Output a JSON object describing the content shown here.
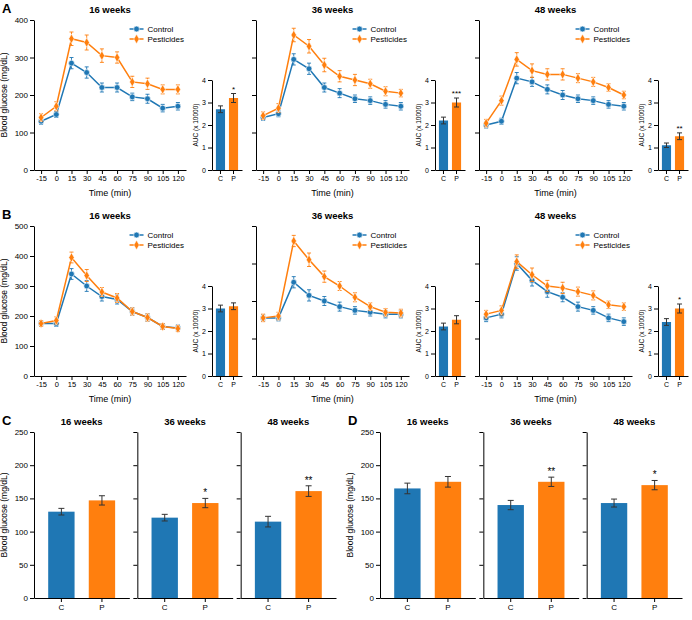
{
  "chart_data": [
    {
      "type": "line",
      "title": "16 weeks",
      "xlabel": "Time (min)",
      "ylabel": "Blood glucose (mg/dL)",
      "x": [
        -15,
        0,
        15,
        30,
        45,
        60,
        75,
        90,
        105,
        120
      ],
      "xlim": [
        -22,
        128
      ],
      "xticks": [
        -15,
        0,
        15,
        30,
        45,
        60,
        75,
        90,
        105,
        120
      ],
      "ylim": [
        0,
        400
      ],
      "yticks": [
        0,
        100,
        200,
        300,
        400
      ],
      "legend": "upper right",
      "series": [
        {
          "name": "Control",
          "marker": "circle",
          "values": [
            130,
            148,
            285,
            260,
            220,
            220,
            195,
            190,
            165,
            170
          ],
          "errors": [
            8,
            8,
            15,
            15,
            12,
            12,
            10,
            12,
            10,
            10
          ]
        },
        {
          "name": "Pesticides",
          "marker": "diamond",
          "values": [
            140,
            170,
            350,
            340,
            305,
            300,
            235,
            230,
            215,
            215
          ],
          "errors": [
            10,
            12,
            18,
            20,
            18,
            15,
            15,
            15,
            12,
            12
          ]
        }
      ],
      "annotations": [
        {
          "text": "A"
        }
      ],
      "inset": {
        "type": "bar",
        "ylabel": "AUC (x 10000)",
        "categories": [
          "C",
          "P"
        ],
        "values": [
          2.7,
          3.2
        ],
        "errors": [
          0.15,
          0.2
        ],
        "ylim": [
          0,
          4
        ],
        "yticks": [
          0,
          1,
          2,
          3,
          4
        ],
        "annotations": [
          {
            "text": "*",
            "x": "P"
          }
        ]
      }
    },
    {
      "type": "line",
      "title": "36 weeks",
      "xlabel": "Time (min)",
      "x": [
        -15,
        0,
        15,
        30,
        45,
        60,
        75,
        90,
        105,
        120
      ],
      "xlim": [
        -22,
        128
      ],
      "xticks": [
        -15,
        0,
        15,
        30,
        45,
        60,
        75,
        90,
        105,
        120
      ],
      "ylim": [
        0,
        400
      ],
      "yticks": [
        0,
        100,
        200,
        300,
        400
      ],
      "legend": "upper right",
      "tick_labels": "x",
      "series": [
        {
          "name": "Control",
          "marker": "circle",
          "values": [
            140,
            150,
            295,
            270,
            220,
            205,
            190,
            185,
            175,
            170
          ],
          "errors": [
            8,
            8,
            15,
            15,
            12,
            12,
            10,
            10,
            10,
            10
          ]
        },
        {
          "name": "Pesticides",
          "marker": "diamond",
          "values": [
            145,
            165,
            360,
            330,
            280,
            250,
            240,
            230,
            210,
            205
          ],
          "errors": [
            10,
            12,
            18,
            18,
            18,
            15,
            15,
            12,
            12,
            10
          ]
        }
      ],
      "inset": {
        "type": "bar",
        "ylabel": "AUC (x 10000)",
        "categories": [
          "C",
          "P"
        ],
        "values": [
          2.2,
          3.0
        ],
        "errors": [
          0.15,
          0.2
        ],
        "ylim": [
          0,
          4
        ],
        "yticks": [
          0,
          1,
          2,
          3,
          4
        ],
        "annotations": [
          {
            "text": "***",
            "x": "P"
          }
        ]
      }
    },
    {
      "type": "line",
      "title": "48 weeks",
      "xlabel": "Time (min)",
      "x": [
        -15,
        0,
        15,
        30,
        45,
        60,
        75,
        90,
        105,
        120
      ],
      "xlim": [
        -22,
        128
      ],
      "xticks": [
        -15,
        0,
        15,
        30,
        45,
        60,
        75,
        90,
        105,
        120
      ],
      "ylim": [
        0,
        400
      ],
      "yticks": [
        0,
        100,
        200,
        300,
        400
      ],
      "legend": "upper right",
      "tick_labels": "x",
      "series": [
        {
          "name": "Control",
          "marker": "circle",
          "values": [
            120,
            130,
            245,
            235,
            215,
            200,
            190,
            185,
            175,
            170
          ],
          "errors": [
            8,
            8,
            15,
            12,
            12,
            12,
            10,
            10,
            10,
            10
          ]
        },
        {
          "name": "Pesticides",
          "marker": "diamond",
          "values": [
            125,
            185,
            295,
            265,
            255,
            255,
            245,
            235,
            220,
            200
          ],
          "errors": [
            10,
            12,
            18,
            18,
            15,
            15,
            12,
            12,
            10,
            10
          ]
        }
      ],
      "inset": {
        "type": "bar",
        "ylabel": "AUC (x 10000)",
        "categories": [
          "C",
          "P"
        ],
        "values": [
          1.1,
          1.5
        ],
        "errors": [
          0.1,
          0.15
        ],
        "ylim": [
          0,
          4
        ],
        "yticks": [
          0,
          1,
          2,
          3,
          4
        ],
        "annotations": [
          {
            "text": "**",
            "x": "P"
          }
        ]
      }
    },
    {
      "type": "line",
      "title": "16 weeks",
      "xlabel": "Time (min)",
      "ylabel": "Blood glucose (mg/dL)",
      "x": [
        -15,
        0,
        15,
        30,
        45,
        60,
        75,
        90,
        105,
        120
      ],
      "xlim": [
        -22,
        128
      ],
      "xticks": [
        -15,
        0,
        15,
        30,
        45,
        60,
        75,
        90,
        105,
        120
      ],
      "ylim": [
        0,
        500
      ],
      "yticks": [
        0,
        100,
        200,
        300,
        400,
        500
      ],
      "legend": "upper right",
      "series": [
        {
          "name": "Control",
          "marker": "circle",
          "values": [
            175,
            175,
            340,
            300,
            265,
            255,
            215,
            195,
            165,
            160
          ],
          "errors": [
            10,
            10,
            18,
            18,
            15,
            15,
            12,
            12,
            10,
            10
          ]
        },
        {
          "name": "Pesticides",
          "marker": "diamond",
          "values": [
            175,
            185,
            395,
            335,
            280,
            260,
            215,
            195,
            165,
            158
          ],
          "errors": [
            10,
            12,
            18,
            20,
            15,
            15,
            12,
            12,
            10,
            10
          ]
        }
      ],
      "annotations": [
        {
          "text": "B"
        }
      ],
      "inset": {
        "type": "bar",
        "ylabel": "AUC (x 10000)",
        "categories": [
          "C",
          "P"
        ],
        "values": [
          3.0,
          3.1
        ],
        "errors": [
          0.15,
          0.15
        ],
        "ylim": [
          0,
          4
        ],
        "yticks": [
          0,
          1,
          2,
          3,
          4
        ]
      }
    },
    {
      "type": "line",
      "title": "36 weeks",
      "xlabel": "Time (min)",
      "x": [
        -15,
        0,
        15,
        30,
        45,
        60,
        75,
        90,
        105,
        120
      ],
      "xlim": [
        -22,
        128
      ],
      "xticks": [
        -15,
        0,
        15,
        30,
        45,
        60,
        75,
        90,
        105,
        120
      ],
      "ylim": [
        0,
        400
      ],
      "yticks": [
        0,
        100,
        200,
        300,
        400
      ],
      "legend": "upper right",
      "tick_labels": "x",
      "series": [
        {
          "name": "Control",
          "marker": "circle",
          "values": [
            155,
            155,
            250,
            215,
            200,
            185,
            175,
            170,
            165,
            165
          ],
          "errors": [
            8,
            8,
            15,
            15,
            12,
            12,
            10,
            10,
            10,
            10
          ]
        },
        {
          "name": "Pesticides",
          "marker": "diamond",
          "values": [
            155,
            160,
            360,
            310,
            265,
            240,
            210,
            185,
            170,
            168
          ],
          "errors": [
            10,
            10,
            15,
            18,
            15,
            12,
            12,
            10,
            10,
            10
          ]
        }
      ],
      "inset": {
        "type": "bar",
        "ylabel": "AUC (x 10000)",
        "categories": [
          "C",
          "P"
        ],
        "values": [
          2.2,
          2.5
        ],
        "errors": [
          0.15,
          0.18
        ],
        "ylim": [
          0,
          4
        ],
        "yticks": [
          0,
          1,
          2,
          3,
          4
        ]
      }
    },
    {
      "type": "line",
      "title": "48 weeks",
      "xlabel": "Time (min)",
      "x": [
        -15,
        0,
        15,
        30,
        45,
        60,
        75,
        90,
        105,
        120
      ],
      "xlim": [
        -22,
        128
      ],
      "xticks": [
        -15,
        0,
        15,
        30,
        45,
        60,
        75,
        90,
        105,
        120
      ],
      "ylim": [
        0,
        400
      ],
      "yticks": [
        0,
        100,
        200,
        300,
        400
      ],
      "legend": "upper right",
      "tick_labels": "x",
      "series": [
        {
          "name": "Control",
          "marker": "circle",
          "values": [
            155,
            165,
            300,
            255,
            225,
            210,
            185,
            175,
            155,
            145
          ],
          "errors": [
            10,
            10,
            18,
            15,
            15,
            12,
            12,
            10,
            10,
            10
          ]
        },
        {
          "name": "Pesticides",
          "marker": "diamond",
          "values": [
            165,
            175,
            305,
            270,
            240,
            235,
            225,
            215,
            190,
            185
          ],
          "errors": [
            10,
            12,
            18,
            18,
            15,
            15,
            12,
            12,
            10,
            10
          ]
        }
      ],
      "inset": {
        "type": "bar",
        "ylabel": "AUC (x 10000)",
        "categories": [
          "C",
          "P"
        ],
        "values": [
          2.4,
          3.0
        ],
        "errors": [
          0.15,
          0.2
        ],
        "ylim": [
          0,
          4
        ],
        "yticks": [
          0,
          1,
          2,
          3,
          4
        ],
        "annotations": [
          {
            "text": "*",
            "x": "P"
          }
        ]
      }
    },
    {
      "type": "bar",
      "title": "16 weeks",
      "ylabel": "Blood glucose (mg/dL)",
      "categories": [
        "C",
        "P"
      ],
      "values": [
        130,
        147
      ],
      "errors": [
        5,
        7
      ],
      "ylim": [
        0,
        250
      ],
      "yticks": [
        0,
        50,
        100,
        150,
        200,
        250
      ],
      "annotations": [
        {
          "text": "C"
        }
      ]
    },
    {
      "type": "bar",
      "title": "36 weeks",
      "categories": [
        "C",
        "P"
      ],
      "values": [
        121,
        143
      ],
      "errors": [
        5,
        7
      ],
      "ylim": [
        0,
        250
      ],
      "yticks": [
        0,
        50,
        100,
        150,
        200,
        250
      ],
      "tick_labels": "x",
      "annotations": [
        {
          "text": "*",
          "x": "P"
        }
      ]
    },
    {
      "type": "bar",
      "title": "48 weeks",
      "categories": [
        "C",
        "P"
      ],
      "values": [
        115,
        161
      ],
      "errors": [
        8,
        8
      ],
      "ylim": [
        0,
        250
      ],
      "yticks": [
        0,
        50,
        100,
        150,
        200,
        250
      ],
      "tick_labels": "x",
      "annotations": [
        {
          "text": "**",
          "x": "P"
        }
      ]
    },
    {
      "type": "bar",
      "title": "16 weeks",
      "ylabel": "Blood glucose (mg/dL)",
      "categories": [
        "C",
        "P"
      ],
      "values": [
        165,
        175
      ],
      "errors": [
        8,
        8
      ],
      "ylim": [
        0,
        250
      ],
      "yticks": [
        0,
        50,
        100,
        150,
        200,
        250
      ],
      "annotations": [
        {
          "text": "D"
        }
      ]
    },
    {
      "type": "bar",
      "title": "36 weeks",
      "categories": [
        "C",
        "P"
      ],
      "values": [
        140,
        175
      ],
      "errors": [
        7,
        7
      ],
      "ylim": [
        0,
        250
      ],
      "yticks": [
        0,
        50,
        100,
        150,
        200,
        250
      ],
      "tick_labels": "x",
      "annotations": [
        {
          "text": "**",
          "x": "P"
        }
      ]
    },
    {
      "type": "bar",
      "title": "48 weeks",
      "categories": [
        "C",
        "P"
      ],
      "values": [
        143,
        170
      ],
      "errors": [
        6,
        7
      ],
      "ylim": [
        0,
        250
      ],
      "yticks": [
        0,
        50,
        100,
        150,
        200,
        250
      ],
      "tick_labels": "x",
      "annotations": [
        {
          "text": "*",
          "x": "P"
        }
      ]
    }
  ]
}
